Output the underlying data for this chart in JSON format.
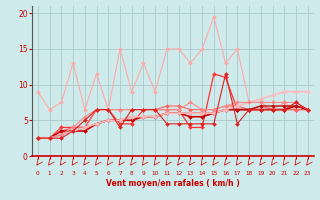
{
  "title": "",
  "xlabel": "Vent moyen/en rafales ( km/h )",
  "background_color": "#ceeaea",
  "grid_color": "#aacccc",
  "x_ticks": [
    0,
    1,
    2,
    3,
    4,
    5,
    6,
    7,
    8,
    9,
    10,
    11,
    12,
    13,
    14,
    15,
    16,
    17,
    18,
    19,
    20,
    21,
    22,
    23
  ],
  "ylim": [
    0,
    21
  ],
  "xlim": [
    -0.5,
    23.5
  ],
  "series": [
    {
      "x": [
        0,
        1,
        2,
        3,
        4,
        5,
        6,
        7,
        8,
        9,
        10,
        11,
        12,
        13,
        14,
        15,
        16,
        17,
        18,
        19,
        20,
        21,
        22,
        23
      ],
      "y": [
        9.0,
        6.5,
        7.5,
        13.0,
        6.5,
        11.5,
        6.5,
        15.0,
        9.0,
        13.0,
        9.0,
        15.0,
        15.0,
        13.0,
        15.0,
        19.5,
        13.0,
        15.0,
        7.5,
        7.5,
        6.5,
        7.5,
        6.5,
        6.5
      ],
      "color": "#ffaaaa",
      "linewidth": 0.8,
      "marker": "D",
      "markersize": 2.0
    },
    {
      "x": [
        0,
        1,
        2,
        3,
        4,
        5,
        6,
        7,
        8,
        9,
        10,
        11,
        12,
        13,
        14,
        15,
        16,
        17,
        18,
        19,
        20,
        21,
        22,
        23
      ],
      "y": [
        2.5,
        2.5,
        4.0,
        4.0,
        4.0,
        6.5,
        6.5,
        4.5,
        4.5,
        6.5,
        6.5,
        6.5,
        6.5,
        4.0,
        4.0,
        11.5,
        11.0,
        6.5,
        6.5,
        6.5,
        6.5,
        6.5,
        6.5,
        6.5
      ],
      "color": "#ff3333",
      "linewidth": 0.9,
      "marker": "D",
      "markersize": 2.0
    },
    {
      "x": [
        0,
        1,
        2,
        3,
        4,
        5,
        6,
        7,
        8,
        9,
        10,
        11,
        12,
        13,
        14,
        15,
        16,
        17,
        18,
        19,
        20,
        21,
        22,
        23
      ],
      "y": [
        2.5,
        2.5,
        3.5,
        4.0,
        4.0,
        6.5,
        6.5,
        6.5,
        6.5,
        6.5,
        6.5,
        7.0,
        7.0,
        6.5,
        6.5,
        6.5,
        7.0,
        7.0,
        6.5,
        7.0,
        6.5,
        6.5,
        6.5,
        6.5
      ],
      "color": "#ff6666",
      "linewidth": 0.8,
      "marker": "D",
      "markersize": 2.0
    },
    {
      "x": [
        0,
        1,
        2,
        3,
        4,
        5,
        6,
        7,
        8,
        9,
        10,
        11,
        12,
        13,
        14,
        15,
        16,
        17,
        18,
        19,
        20,
        21,
        22,
        23
      ],
      "y": [
        2.5,
        2.5,
        3.5,
        3.5,
        3.5,
        4.5,
        5.0,
        5.0,
        5.0,
        5.5,
        5.5,
        6.0,
        6.0,
        5.5,
        5.5,
        6.0,
        6.5,
        6.5,
        6.5,
        6.5,
        6.5,
        6.5,
        7.0,
        6.5
      ],
      "color": "#cc0000",
      "linewidth": 1.2,
      "marker": "D",
      "markersize": 2.0
    },
    {
      "x": [
        0,
        1,
        2,
        3,
        4,
        5,
        6,
        7,
        8,
        9,
        10,
        11,
        12,
        13,
        14,
        15,
        16,
        17,
        18,
        19,
        20,
        21,
        22,
        23
      ],
      "y": [
        2.5,
        2.5,
        3.0,
        3.5,
        4.0,
        4.5,
        5.0,
        5.0,
        5.5,
        5.5,
        5.5,
        6.0,
        6.0,
        6.0,
        6.0,
        6.0,
        6.5,
        6.5,
        6.5,
        7.0,
        7.0,
        7.0,
        7.0,
        6.5
      ],
      "color": "#bb1111",
      "linewidth": 1.0,
      "marker": "D",
      "markersize": 2.0
    },
    {
      "x": [
        0,
        1,
        2,
        3,
        4,
        5,
        6,
        7,
        8,
        9,
        10,
        11,
        12,
        13,
        14,
        15,
        16,
        17,
        18,
        19,
        20,
        21,
        22,
        23
      ],
      "y": [
        2.5,
        2.5,
        3.0,
        3.5,
        4.0,
        4.5,
        5.0,
        5.0,
        5.5,
        5.5,
        5.5,
        6.0,
        6.0,
        6.0,
        6.0,
        6.0,
        6.5,
        7.0,
        7.5,
        8.0,
        8.5,
        9.0,
        9.0,
        9.0
      ],
      "color": "#ffbbbb",
      "linewidth": 1.2,
      "marker": "D",
      "markersize": 2.0
    },
    {
      "x": [
        0,
        1,
        2,
        3,
        4,
        5,
        6,
        7,
        8,
        9,
        10,
        11,
        12,
        13,
        14,
        15,
        16,
        17,
        18,
        19,
        20,
        21,
        22,
        23
      ],
      "y": [
        2.5,
        2.5,
        3.0,
        4.0,
        5.5,
        6.5,
        6.5,
        6.5,
        6.5,
        6.5,
        6.5,
        6.5,
        6.5,
        7.5,
        6.5,
        6.5,
        7.0,
        7.5,
        7.5,
        7.5,
        7.5,
        7.5,
        7.5,
        6.5
      ],
      "color": "#ff8888",
      "linewidth": 0.8,
      "marker": "D",
      "markersize": 2.0
    },
    {
      "x": [
        0,
        1,
        2,
        3,
        4,
        5,
        6,
        7,
        8,
        9,
        10,
        11,
        12,
        13,
        14,
        15,
        16,
        17,
        18,
        19,
        20,
        21,
        22,
        23
      ],
      "y": [
        2.5,
        2.5,
        2.5,
        3.5,
        5.0,
        6.5,
        6.5,
        4.0,
        6.5,
        6.5,
        6.5,
        4.5,
        4.5,
        4.5,
        4.5,
        4.5,
        11.5,
        4.5,
        6.5,
        6.5,
        6.5,
        6.5,
        7.5,
        6.5
      ],
      "color": "#dd2222",
      "linewidth": 0.8,
      "marker": "D",
      "markersize": 2.0
    }
  ],
  "arrow_color": "#cc0000",
  "tick_color": "#cc0000",
  "label_color": "#cc0000",
  "yticks": [
    0,
    5,
    10,
    15,
    20
  ],
  "ytick_labels": [
    "0",
    "5",
    "10",
    "15",
    "20"
  ]
}
